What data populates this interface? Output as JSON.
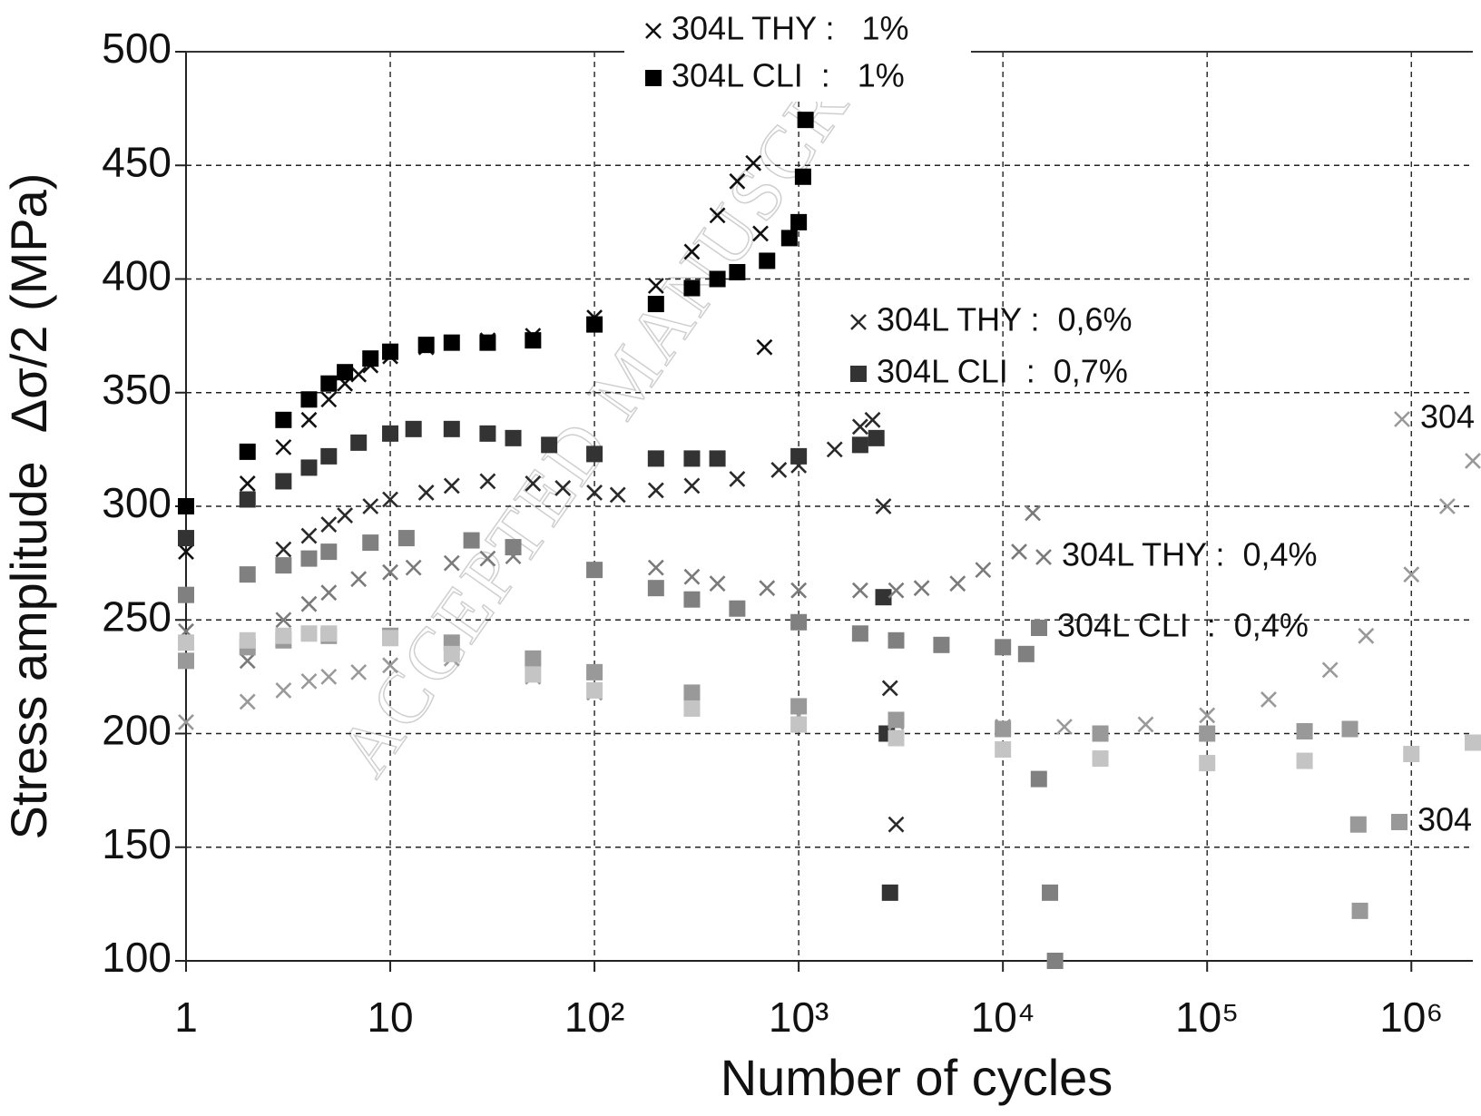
{
  "chart_data": {
    "type": "scatter",
    "xlabel": "Number of cycles",
    "ylabel": "Stress amplitude  Δσ/2 (MPa)",
    "watermark": "ACCEPTED MANUSCRIPT",
    "xscale": "log",
    "xlim": [
      1,
      2000000
    ],
    "ylim": [
      100,
      500
    ],
    "xticks": [
      1,
      10,
      {
        "value": 100,
        "label": "10²"
      },
      {
        "value": 1000,
        "label": "10³"
      },
      {
        "value": 10000,
        "label": "10⁴"
      },
      {
        "value": 100000,
        "label": "10⁵"
      },
      {
        "value": 1000000,
        "label": "10⁶"
      }
    ],
    "yticks": [
      100,
      150,
      200,
      250,
      300,
      350,
      400,
      450,
      500
    ],
    "grid": true,
    "series": [
      {
        "name": "304L THY :   1%",
        "color": "#111111",
        "marker": "x",
        "x": [
          1,
          2,
          3,
          4,
          5,
          6,
          7,
          8,
          10,
          15,
          20,
          30,
          50,
          100,
          200,
          300,
          400,
          500,
          600,
          650,
          680
        ],
        "values": [
          280,
          310,
          326,
          338,
          347,
          354,
          358,
          362,
          366,
          370,
          372,
          373,
          375,
          383,
          397,
          412,
          428,
          443,
          451,
          420,
          370
        ]
      },
      {
        "name": "304L CLI  :   1%",
        "color": "#000000",
        "marker": "square",
        "x": [
          1,
          2,
          3,
          4,
          5,
          6,
          8,
          10,
          15,
          20,
          30,
          50,
          100,
          200,
          300,
          400,
          500,
          700,
          900,
          1000,
          1050,
          1080
        ],
        "values": [
          300,
          324,
          338,
          347,
          354,
          359,
          365,
          368,
          371,
          372,
          372,
          373,
          380,
          389,
          396,
          400,
          403,
          408,
          418,
          425,
          445,
          470
        ]
      },
      {
        "name": "304L THY :  0,6%",
        "color": "#2a2a2a",
        "marker": "x",
        "x": [
          3,
          4,
          5,
          6,
          8,
          10,
          15,
          20,
          30,
          50,
          70,
          100,
          130,
          200,
          300,
          500,
          800,
          1000,
          1500,
          2000,
          2300,
          2600,
          2800,
          3000
        ],
        "values": [
          281,
          287,
          292,
          296,
          300,
          303,
          306,
          309,
          311,
          310,
          308,
          306,
          305,
          307,
          309,
          312,
          316,
          318,
          325,
          335,
          338,
          300,
          220,
          160
        ]
      },
      {
        "name": "304L CLI  :  0,7%",
        "color": "#333333",
        "marker": "square",
        "x": [
          1,
          2,
          3,
          4,
          5,
          7,
          10,
          13,
          20,
          30,
          40,
          60,
          100,
          200,
          300,
          400,
          1000,
          2000,
          2400,
          2600,
          2700,
          2800
        ],
        "values": [
          286,
          303,
          311,
          317,
          322,
          328,
          332,
          334,
          334,
          332,
          330,
          327,
          323,
          321,
          321,
          321,
          322,
          327,
          330,
          260,
          200,
          130
        ]
      },
      {
        "name": "304L THY :  0,4%",
        "color": "#7a7a7a",
        "marker": "x",
        "x": [
          1,
          2,
          3,
          4,
          5,
          7,
          10,
          13,
          20,
          30,
          40,
          100,
          200,
          300,
          400,
          700,
          1000,
          2000,
          3000,
          4000,
          6000,
          8000,
          12000,
          14000
        ],
        "values": [
          245,
          232,
          250,
          257,
          262,
          268,
          271,
          273,
          275,
          277,
          278,
          272,
          273,
          269,
          266,
          264,
          263,
          263,
          263,
          264,
          266,
          272,
          280,
          297
        ]
      },
      {
        "name": "304L CLI  :  0,4%",
        "color": "#808080",
        "marker": "square",
        "x": [
          1,
          2,
          3,
          4,
          5,
          8,
          12,
          25,
          40,
          100,
          200,
          300,
          500,
          1000,
          2000,
          3000,
          5000,
          10000,
          13000,
          15000,
          17000,
          18000
        ],
        "values": [
          261,
          270,
          274,
          277,
          280,
          284,
          286,
          285,
          282,
          272,
          264,
          259,
          255,
          249,
          244,
          241,
          239,
          238,
          235,
          180,
          130,
          100
        ]
      },
      {
        "name": "304",
        "color": "#999999",
        "marker": "x",
        "x": [
          1,
          2,
          3,
          4,
          5,
          7,
          10,
          20,
          50,
          100,
          300,
          1000,
          3000,
          10000,
          20000,
          50000,
          100000,
          200000,
          400000,
          600000,
          1000000,
          1500000,
          2000000
        ],
        "values": [
          205,
          214,
          219,
          223,
          225,
          227,
          230,
          233,
          225,
          218,
          212,
          208,
          205,
          203,
          203,
          204,
          208,
          215,
          228,
          243,
          270,
          300,
          320
        ]
      },
      {
        "name": "304",
        "color": "#999999",
        "marker": "square",
        "x": [
          1,
          2,
          3,
          5,
          10,
          20,
          50,
          100,
          300,
          1000,
          3000,
          10000,
          30000,
          100000,
          300000,
          500000,
          550000,
          560000
        ],
        "values": [
          232,
          238,
          241,
          243,
          243,
          240,
          233,
          227,
          218,
          212,
          206,
          202,
          200,
          200,
          201,
          202,
          160,
          122
        ]
      },
      {
        "color": "#c4c4c4",
        "marker": "square",
        "x": [
          1,
          2,
          3,
          4,
          5,
          10,
          20,
          50,
          100,
          300,
          1000,
          3000,
          10000,
          30000,
          100000,
          300000,
          1000000,
          2000000
        ],
        "values": [
          240,
          241,
          243,
          244,
          244,
          242,
          235,
          226,
          219,
          211,
          204,
          198,
          193,
          189,
          187,
          188,
          191,
          196
        ]
      }
    ]
  }
}
